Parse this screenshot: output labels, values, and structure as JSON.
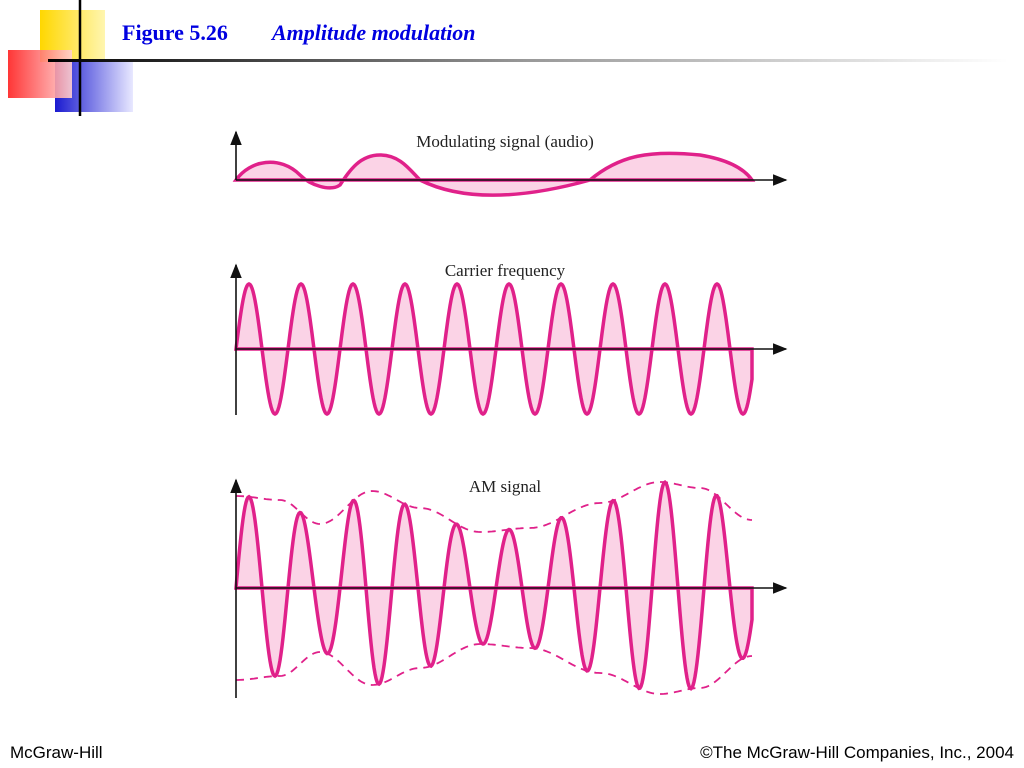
{
  "header": {
    "figure": "Figure 5.26",
    "title": "Amplitude modulation"
  },
  "panels": [
    {
      "label": "Modulating signal (audio)"
    },
    {
      "label": "Carrier frequency"
    },
    {
      "label": "AM signal"
    }
  ],
  "footer": {
    "left": "McGraw-Hill",
    "right": "©The McGraw-Hill Companies, Inc., 2004"
  }
}
